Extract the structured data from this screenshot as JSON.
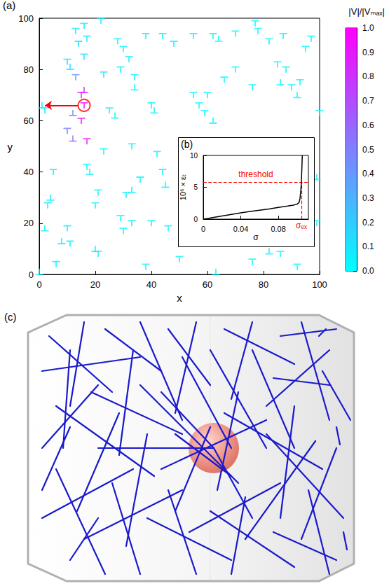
{
  "chart_data": [
    {
      "type": "scatter",
      "panel": "(a)",
      "x_label": "x",
      "y_label": "y",
      "xlim": [
        0,
        100
      ],
      "xticks": [
        0,
        20,
        40,
        60,
        80,
        100
      ],
      "ylim": [
        0,
        100
      ],
      "yticks": [
        0,
        20,
        40,
        60,
        80,
        100
      ],
      "series": [
        {
          "marker": "T",
          "values": [
            [
              13,
              95,
              0.1
            ],
            [
              16,
              97,
              0.08
            ],
            [
              17,
              92,
              0.1
            ],
            [
              14,
              90,
              0.12
            ],
            [
              22,
              99,
              0.05
            ],
            [
              28,
              91,
              0.06
            ],
            [
              30,
              88,
              0.05
            ],
            [
              32,
              84,
              0.05
            ],
            [
              29,
              80,
              0.06
            ],
            [
              38,
              93,
              0.03
            ],
            [
              44,
              93,
              0.04
            ],
            [
              48,
              90,
              0.04
            ],
            [
              55,
              93,
              0.03
            ],
            [
              62,
              93,
              0.03
            ],
            [
              70,
              94,
              0.04
            ],
            [
              77,
              98,
              0.03
            ],
            [
              78,
              95,
              0.03
            ],
            [
              87,
              93,
              0.04
            ],
            [
              97,
              92,
              0.04
            ],
            [
              10,
              83,
              0.15
            ],
            [
              16,
              85,
              0.12
            ],
            [
              23,
              78,
              0.08
            ],
            [
              34,
              77,
              0.04
            ],
            [
              40,
              66,
              0.06
            ],
            [
              55,
              70,
              0.04
            ],
            [
              60,
              70,
              0.03
            ],
            [
              59,
              63,
              0.03
            ],
            [
              66,
              76,
              0.03
            ],
            [
              70,
              80,
              0.03
            ],
            [
              76,
              73,
              0.03
            ],
            [
              85,
              82,
              0.03
            ],
            [
              88,
              80,
              0.03
            ],
            [
              90,
              73,
              0.04
            ],
            [
              93,
              75,
              0.03
            ],
            [
              2,
              64,
              0.1
            ],
            [
              15,
              70,
              0.9
            ],
            [
              16,
              66,
              1.0
            ],
            [
              15,
              60,
              0.95
            ],
            [
              17,
              52,
              0.9
            ],
            [
              10,
              56,
              0.5
            ],
            [
              25,
              64,
              0.08
            ],
            [
              5,
              40,
              0.05
            ],
            [
              17,
              42,
              0.05
            ],
            [
              23,
              48,
              0.05
            ],
            [
              33,
              50,
              0.04
            ],
            [
              42,
              47,
              0.04
            ],
            [
              44,
              40,
              0.04
            ],
            [
              21,
              32,
              0.05
            ],
            [
              20,
              27,
              0.05
            ],
            [
              31,
              31,
              0.04
            ],
            [
              36,
              37,
              0.04
            ],
            [
              29,
              22,
              0.04
            ],
            [
              33,
              20,
              0.04
            ],
            [
              40,
              20,
              0.04
            ],
            [
              46,
              18,
              0.04
            ],
            [
              10,
              18,
              0.06
            ],
            [
              11,
              12,
              0.06
            ],
            [
              3,
              27,
              0.06
            ],
            [
              6,
              4,
              0.05
            ],
            [
              21,
              8,
              0.05
            ],
            [
              30,
              17,
              0.04
            ],
            [
              38,
              3,
              0.04
            ],
            [
              50,
              6,
              0.04
            ],
            [
              76,
              5,
              0.03
            ],
            [
              86,
              8,
              0.03
            ],
            [
              92,
              3,
              0.03
            ],
            [
              99,
              20,
              0.04
            ],
            [
              100,
              63,
              0.03
            ],
            [
              13,
              77,
              0.4
            ],
            [
              57,
              66,
              0.03
            ],
            [
              82,
              91,
              0.04
            ],
            [
              95,
              88,
              0.04
            ]
          ]
        },
        {
          "marker": "inverted_T",
          "values": [
            [
              16,
              72,
              0.85
            ],
            [
              12,
              63,
              0.45
            ],
            [
              12,
              53,
              0.55
            ],
            [
              8,
              13,
              0.06
            ],
            [
              2,
              18,
              0.06
            ],
            [
              4,
              30,
              0.05
            ],
            [
              18,
              40,
              0.05
            ],
            [
              20,
              10,
              0.05
            ],
            [
              34,
              73,
              0.04
            ],
            [
              41,
              64,
              0.05
            ],
            [
              62,
              60,
              0.03
            ],
            [
              86,
              75,
              0.03
            ],
            [
              92,
              70,
              0.03
            ],
            [
              64,
              92,
              0.03
            ],
            [
              27,
              62,
              0.06
            ],
            [
              45,
              35,
              0.04
            ],
            [
              33,
              33,
              0.04
            ],
            [
              82,
              9,
              0.03
            ],
            [
              99,
              38,
              0.04
            ],
            [
              11,
              81,
              0.12
            ],
            [
              63,
              1,
              0.03
            ],
            [
              0,
              1,
              0.04
            ],
            [
              1,
              66,
              0.1
            ]
          ]
        }
      ],
      "colorbar": {
        "title": "|V|/|Vₘₐₓ|",
        "range": [
          0,
          1
        ],
        "colors": [
          "#00ffff",
          "#ff00ff"
        ],
        "ticks": [
          {
            "value": 0,
            "label": "0.0"
          },
          {
            "value": 0.1,
            "label": "0.1"
          },
          {
            "value": 0.2,
            "label": "0.2"
          },
          {
            "value": 0.3,
            "label": "0.3"
          },
          {
            "value": 0.4,
            "label": "0.4"
          },
          {
            "value": 0.5,
            "label": "0.5"
          },
          {
            "value": 0.6,
            "label": "0.6"
          },
          {
            "value": 0.7,
            "label": "0.7"
          },
          {
            "value": 0.8,
            "label": "0.8"
          },
          {
            "value": 0.9,
            "label": "0.9"
          },
          {
            "value": 1,
            "label": "1.0"
          }
        ]
      },
      "annotations": [
        {
          "shape": "circle",
          "x": 16,
          "y": 66,
          "color": "#ff0000"
        },
        {
          "shape": "arrow",
          "x": [
            14,
            2
          ],
          "y": [
            66,
            66
          ],
          "color": "#ff0000"
        }
      ]
    },
    {
      "type": "line",
      "panel": "(b)",
      "x_label": "σ",
      "y_label": "10⁶ × εₜ",
      "xlim": [
        0,
        0.112
      ],
      "xticks": [
        0,
        0.04,
        0.08
      ],
      "ylim": [
        0,
        10
      ],
      "yticks": [
        0,
        5,
        10
      ],
      "x": [
        0,
        0.005,
        0.01,
        0.02,
        0.03,
        0.04,
        0.05,
        0.06,
        0.07,
        0.08,
        0.09,
        0.096,
        0.1,
        0.102,
        0.103,
        0.104,
        0.1045,
        0.105,
        0.1055
      ],
      "values": [
        0,
        0.12,
        0.25,
        0.5,
        0.75,
        1.0,
        1.2,
        1.4,
        1.6,
        1.85,
        2.05,
        2.2,
        2.35,
        2.6,
        3.2,
        4.6,
        5.8,
        7.8,
        10
      ],
      "color": "#000000",
      "threshold": {
        "label": "threshold",
        "value": 5.8,
        "color": "#ff0000",
        "line_style": "dashed"
      },
      "sigma_ex": {
        "label": "σₑₓ",
        "value": 0.1045
      }
    },
    {
      "type": "image",
      "panel": "(c)"
    }
  ]
}
